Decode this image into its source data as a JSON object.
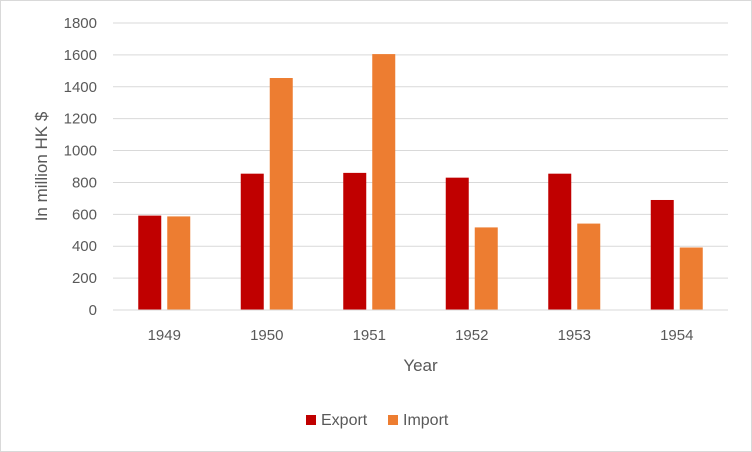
{
  "chart_data": {
    "type": "bar",
    "title": "",
    "xlabel": "Year",
    "ylabel": "In million HK $",
    "categories": [
      "1949",
      "1950",
      "1951",
      "1952",
      "1953",
      "1954"
    ],
    "ylim": [
      0,
      1800
    ],
    "yticks": [
      "0",
      "200",
      "400",
      "600",
      "800",
      "1000",
      "1200",
      "1400",
      "1600",
      "1800"
    ],
    "grid": true,
    "legend_position": "bottom",
    "series": [
      {
        "name": "Export",
        "color": "#c00000",
        "values": [
          592,
          855,
          860,
          830,
          855,
          690
        ]
      },
      {
        "name": "Import",
        "color": "#ed7d31",
        "values": [
          587,
          1455,
          1605,
          518,
          542,
          392
        ]
      }
    ]
  }
}
